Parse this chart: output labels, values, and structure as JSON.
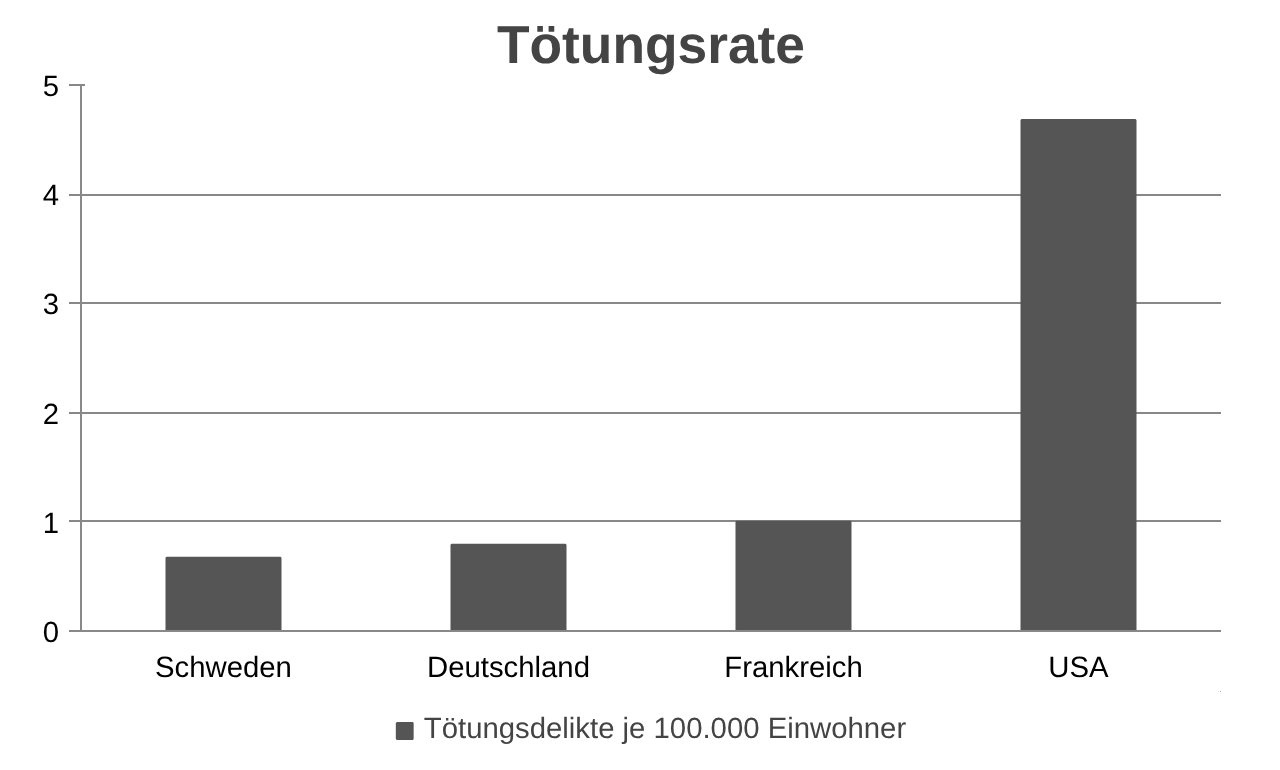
{
  "chart_data": {
    "type": "bar",
    "title": "Tötungsrate",
    "categories": [
      "Schweden",
      "Deutschland",
      "Frankreich",
      "USA"
    ],
    "series": [
      {
        "name": "Tötungsdelikte je 100.000 Einwohner",
        "color": "#555555",
        "values": [
          0.67,
          0.79,
          1.0,
          4.68
        ]
      }
    ],
    "ylim": [
      0,
      5
    ],
    "yticks": [
      0,
      1,
      2,
      3,
      4,
      5
    ],
    "grid": "y",
    "legend": "bottom"
  }
}
